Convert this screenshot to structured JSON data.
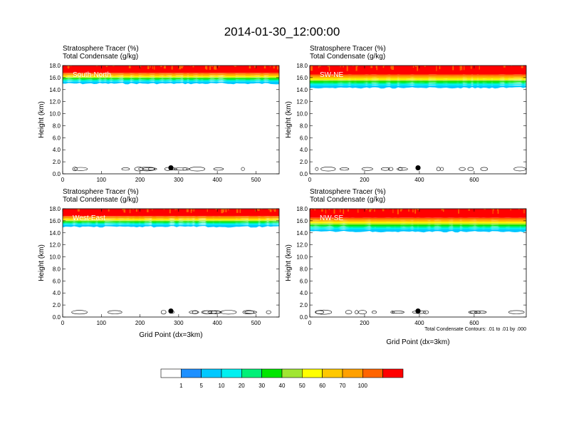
{
  "figure": {
    "title": "2014-01-30_12:00:00",
    "footnote": "Total Condensate Contours: .01 to .01 by .000"
  },
  "chart_data": {
    "type": "heatmap",
    "panels": [
      {
        "name": "South-North",
        "label_line1": "Stratosphere Tracer   (%)",
        "label_line2": "Total Condensate   (g/kg)",
        "xlabel": "",
        "ylabel": "Height (km)",
        "xlim": [
          0,
          560
        ],
        "ylim": [
          0,
          18
        ],
        "xticks": [
          0,
          100,
          200,
          300,
          400,
          500
        ],
        "yticks": [
          0,
          2,
          4,
          6,
          8,
          10,
          12,
          14,
          16,
          18
        ],
        "tracer_base_km": 15.0,
        "marker": {
          "x": 280,
          "y": 1.0
        }
      },
      {
        "name": "SW-NE",
        "label_line1": "Stratosphere Tracer   (%)",
        "label_line2": "Total Condensate   (g/kg)",
        "xlabel": "",
        "ylabel": "Height (km)",
        "xlim": [
          0,
          790
        ],
        "ylim": [
          0,
          18
        ],
        "xticks": [
          0,
          200,
          400,
          600
        ],
        "yticks": [
          0,
          2,
          4,
          6,
          8,
          10,
          12,
          14,
          16,
          18
        ],
        "tracer_base_km": 14.3,
        "marker": {
          "x": 395,
          "y": 1.0
        }
      },
      {
        "name": "West-East",
        "label_line1": "Stratosphere Tracer   (%)",
        "label_line2": "Total Condensate   (g/kg)",
        "xlabel": "Grid Point (dx=3km)",
        "ylabel": "Height (km)",
        "xlim": [
          0,
          560
        ],
        "ylim": [
          0,
          18
        ],
        "xticks": [
          0,
          100,
          200,
          300,
          400,
          500
        ],
        "yticks": [
          0,
          2,
          4,
          6,
          8,
          10,
          12,
          14,
          16,
          18
        ],
        "tracer_base_km": 15.0,
        "marker": {
          "x": 280,
          "y": 1.0
        }
      },
      {
        "name": "NW-SE",
        "label_line1": "Stratosphere Tracer   (%)",
        "label_line2": "Total Condensate   (g/kg)",
        "xlabel": "Grid Point (dx=3km)",
        "ylabel": "Height (km)",
        "xlim": [
          0,
          790
        ],
        "ylim": [
          0,
          18
        ],
        "xticks": [
          0,
          200,
          400,
          600
        ],
        "yticks": [
          0,
          2,
          4,
          6,
          8,
          10,
          12,
          14,
          16,
          18
        ],
        "tracer_base_km": 14.2,
        "marker": {
          "x": 395,
          "y": 1.0
        }
      }
    ],
    "colorbar": {
      "levels": [
        "1",
        "5",
        "10",
        "20",
        "30",
        "40",
        "50",
        "60",
        "70",
        "100"
      ],
      "colors": [
        "#ffffff",
        "#1e90ff",
        "#00c8ff",
        "#00f0f0",
        "#00f078",
        "#00e600",
        "#a0e632",
        "#ffff00",
        "#ffc800",
        "#ffa000",
        "#ff6400",
        "#ff0000"
      ]
    }
  }
}
